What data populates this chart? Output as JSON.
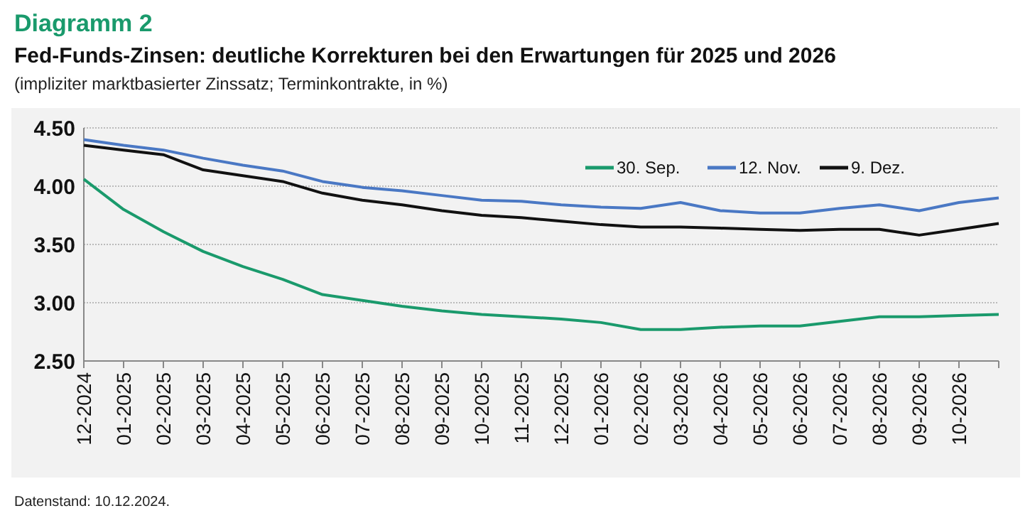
{
  "chart_data": {
    "type": "line",
    "title": "Diagramm 2",
    "subtitle": "Fed-Funds-Zinsen: deutliche Korrekturen bei den Erwartungen für  2025 und 2026",
    "annotations": [
      "(impliziter marktbasierter Zinssatz; Terminkontrakte, in %)",
      "Datenstand: 10.12.2024."
    ],
    "categories": [
      "12-2024",
      "01-2025",
      "02-2025",
      "03-2025",
      "04-2025",
      "05-2025",
      "06-2025",
      "07-2025",
      "08-2025",
      "09-2025",
      "10-2025",
      "11-2025",
      "12-2025",
      "01-2026",
      "02-2026",
      "03-2026",
      "04-2026",
      "05-2026",
      "06-2026",
      "07-2026",
      "08-2026",
      "09-2026",
      "10-2026",
      null
    ],
    "series": [
      {
        "name": "30. Sep.",
        "color": "#1a9a6c",
        "values": [
          4.06,
          3.8,
          3.61,
          3.44,
          3.31,
          3.2,
          3.07,
          3.02,
          2.97,
          2.93,
          2.9,
          2.88,
          2.86,
          2.83,
          2.77,
          2.77,
          2.79,
          2.8,
          2.8,
          2.84,
          2.88,
          2.88,
          2.89,
          2.9
        ]
      },
      {
        "name": "12. Nov.",
        "color": "#4a78c4",
        "values": [
          4.4,
          4.35,
          4.31,
          4.24,
          4.18,
          4.13,
          4.04,
          3.99,
          3.96,
          3.92,
          3.88,
          3.87,
          3.84,
          3.82,
          3.81,
          3.86,
          3.79,
          3.77,
          3.77,
          3.81,
          3.84,
          3.79,
          3.86,
          3.9
        ]
      },
      {
        "name": "9. Dez.",
        "color": "#111111",
        "values": [
          4.35,
          4.31,
          4.27,
          4.14,
          4.09,
          4.04,
          3.94,
          3.88,
          3.84,
          3.79,
          3.75,
          3.73,
          3.7,
          3.67,
          3.65,
          3.65,
          3.64,
          3.63,
          3.62,
          3.63,
          3.63,
          3.58,
          3.63,
          3.68
        ]
      }
    ],
    "ylim": [
      2.5,
      4.5
    ],
    "yticks": [
      {
        "value": 2.5,
        "label": "2.50"
      },
      {
        "value": 3,
        "label": "3.00"
      },
      {
        "value": 3.5,
        "label": "3.50"
      },
      {
        "value": 4,
        "label": "4.00"
      },
      {
        "value": 4.5,
        "label": "4.50"
      }
    ],
    "grid": "y",
    "legend": "top right",
    "line_style": "solid",
    "marker": "none"
  }
}
